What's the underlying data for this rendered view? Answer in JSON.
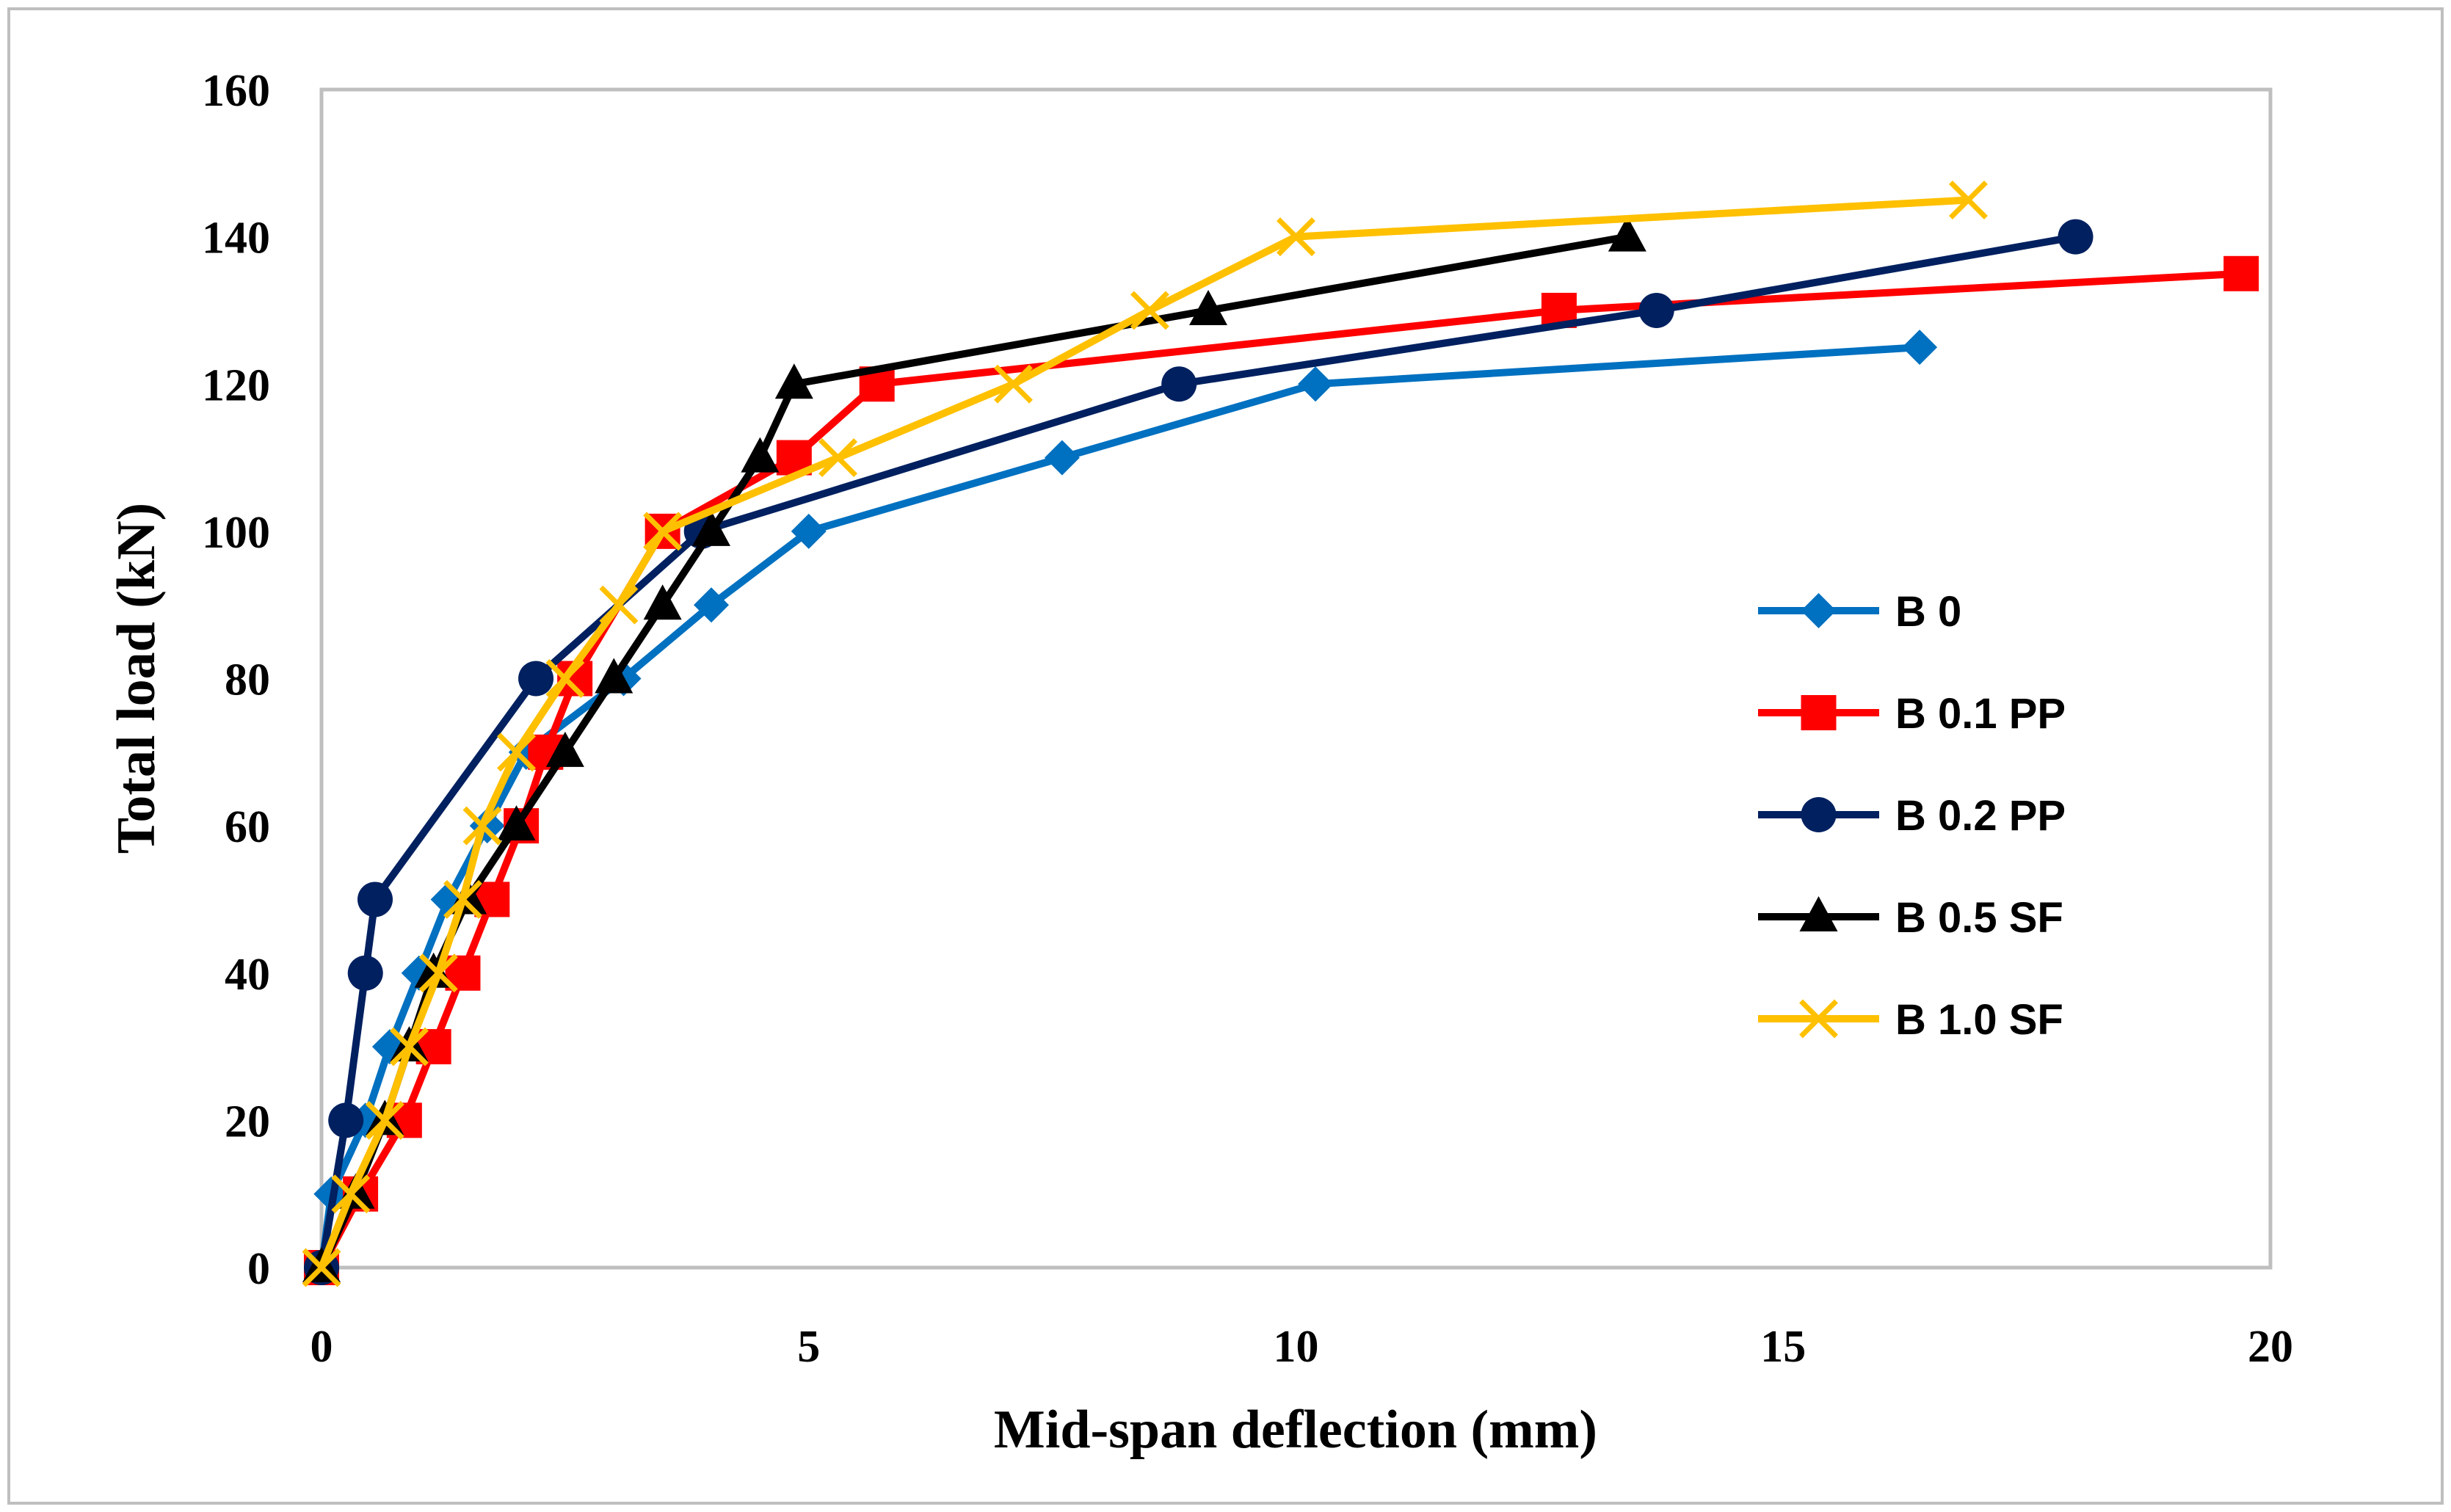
{
  "chart_data": {
    "type": "line",
    "title": "",
    "xlabel": "Mid-span deflection (mm)",
    "ylabel": "Total load (kN)",
    "xlim": [
      0,
      20
    ],
    "ylim": [
      0,
      160
    ],
    "x_ticks": [
      0,
      5,
      10,
      15,
      20
    ],
    "y_ticks": [
      0,
      20,
      40,
      60,
      80,
      100,
      120,
      140,
      160
    ],
    "grid": false,
    "legend_position": "right",
    "series": [
      {
        "name": "B 0",
        "color": "#0070C0",
        "marker": "diamond",
        "points": [
          [
            0,
            0
          ],
          [
            0.1,
            10
          ],
          [
            0.45,
            20
          ],
          [
            0.7,
            30
          ],
          [
            1.0,
            40
          ],
          [
            1.3,
            50
          ],
          [
            1.7,
            60
          ],
          [
            2.1,
            70
          ],
          [
            3.1,
            80
          ],
          [
            4.0,
            90
          ],
          [
            5.0,
            100
          ],
          [
            7.6,
            110
          ],
          [
            10.2,
            120
          ],
          [
            16.4,
            125
          ]
        ]
      },
      {
        "name": "B 0.1 PP",
        "color": "#FF0000",
        "marker": "square",
        "points": [
          [
            0,
            0
          ],
          [
            0.4,
            10
          ],
          [
            0.85,
            20
          ],
          [
            1.15,
            30
          ],
          [
            1.45,
            40
          ],
          [
            1.75,
            50
          ],
          [
            2.05,
            60
          ],
          [
            2.3,
            70
          ],
          [
            2.6,
            80
          ],
          [
            3.5,
            100
          ],
          [
            4.85,
            110
          ],
          [
            5.7,
            120
          ],
          [
            12.7,
            130
          ],
          [
            19.7,
            135
          ]
        ]
      },
      {
        "name": "B 0.2 PP",
        "color": "#002060",
        "marker": "circle",
        "points": [
          [
            0,
            0
          ],
          [
            0.25,
            20
          ],
          [
            0.45,
            40
          ],
          [
            0.55,
            50
          ],
          [
            2.2,
            80
          ],
          [
            3.9,
            100
          ],
          [
            8.8,
            120
          ],
          [
            13.7,
            130
          ],
          [
            18.0,
            140
          ]
        ]
      },
      {
        "name": "B 0.5 SF",
        "color": "#000000",
        "marker": "triangle",
        "points": [
          [
            0,
            0
          ],
          [
            0.35,
            10
          ],
          [
            0.65,
            20
          ],
          [
            0.9,
            30
          ],
          [
            1.15,
            40
          ],
          [
            1.5,
            50
          ],
          [
            2.0,
            60
          ],
          [
            2.5,
            70
          ],
          [
            3.0,
            80
          ],
          [
            3.5,
            90
          ],
          [
            4.0,
            100
          ],
          [
            4.5,
            110
          ],
          [
            4.85,
            120
          ],
          [
            9.1,
            130
          ],
          [
            13.4,
            140
          ]
        ]
      },
      {
        "name": "B 1.0 SF",
        "color": "#FFC000",
        "marker": "x",
        "points": [
          [
            0,
            0
          ],
          [
            0.3,
            10
          ],
          [
            0.65,
            20
          ],
          [
            0.9,
            30
          ],
          [
            1.2,
            40
          ],
          [
            1.45,
            50
          ],
          [
            1.65,
            60
          ],
          [
            2.0,
            70
          ],
          [
            2.5,
            80
          ],
          [
            3.05,
            90
          ],
          [
            3.5,
            100
          ],
          [
            5.3,
            110
          ],
          [
            7.1,
            120
          ],
          [
            8.5,
            130
          ],
          [
            10.0,
            140
          ],
          [
            16.9,
            145
          ]
        ]
      }
    ]
  }
}
